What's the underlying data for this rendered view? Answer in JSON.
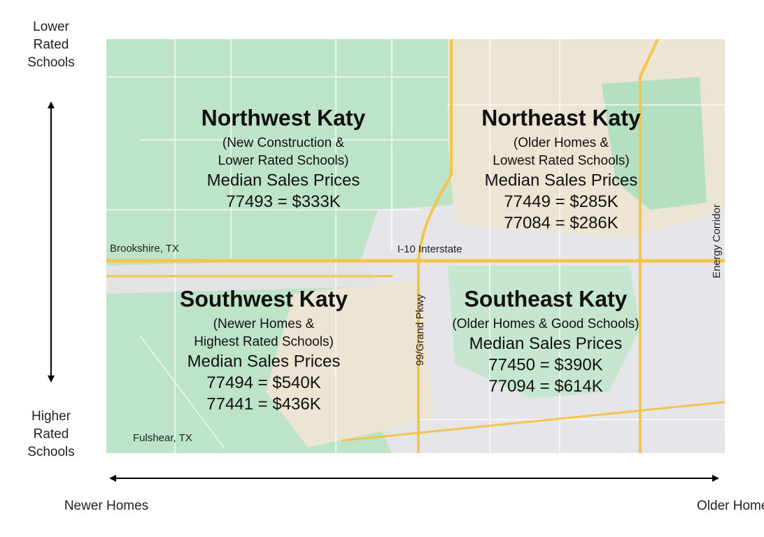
{
  "axes": {
    "top_label": [
      "Lower",
      "Rated",
      "Schools"
    ],
    "bottom_label": [
      "Higher",
      "Rated",
      "Schools"
    ],
    "left_label": "Newer Homes",
    "right_label": "Older Homes"
  },
  "map_labels": {
    "brookshire": "Brookshire, TX",
    "interstate": "I-10 Interstate",
    "grand_parkway": "99/Grand Pkwy",
    "energy_corridor": "Energy Corridor",
    "fulshear": "Fulshear, TX"
  },
  "regions": [
    {
      "title": "Northwest Katy",
      "subtitle": [
        "(New Construction &",
        "Lower Rated Schools)"
      ],
      "heading": "Median Sales Prices",
      "prices": [
        "77493 = $333K"
      ]
    },
    {
      "title": "Northeast Katy",
      "subtitle": [
        "(Older Homes &",
        "Lowest Rated Schools)"
      ],
      "heading": "Median Sales Prices",
      "prices": [
        "77449 = $285K",
        "77084 = $286K"
      ]
    },
    {
      "title": "Southwest Katy",
      "subtitle": [
        "(Newer Homes &",
        "Highest Rated Schools)"
      ],
      "heading": "Median Sales Prices",
      "prices": [
        "77494 = $540K",
        "77441 = $436K"
      ]
    },
    {
      "title": "Southeast Katy",
      "subtitle": [
        "(Older Homes & Good Schools)"
      ],
      "heading": "Median Sales Prices",
      "prices": [
        "77450 = $390K",
        "77094 = $614K"
      ]
    }
  ]
}
